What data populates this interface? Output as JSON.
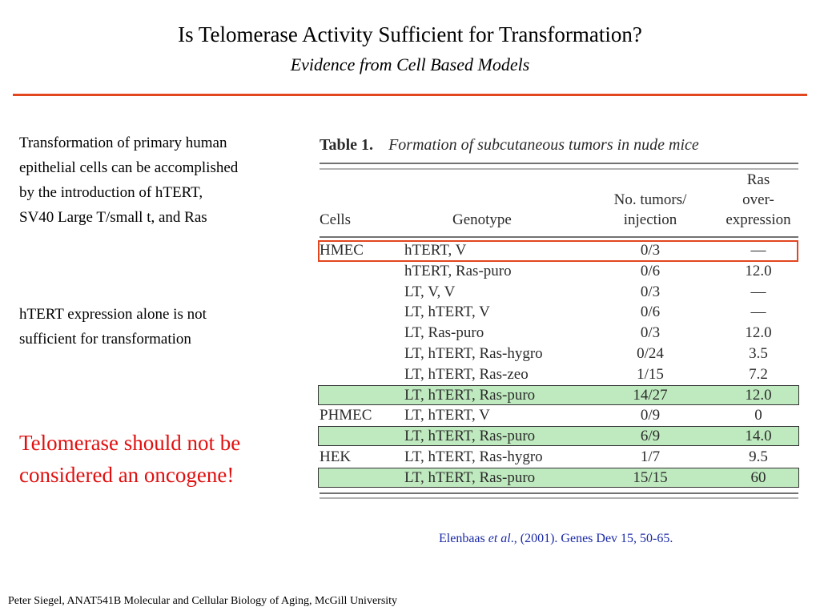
{
  "slide": {
    "title": "Is Telomerase Activity Sufficient for Transformation?",
    "subtitle": "Evidence from Cell Based Models",
    "point1_lines": [
      "Transformation of primary human",
      "epithelial cells can be accomplished",
      "by the introduction of hTERT,",
      "SV40 Large T/small t, and Ras"
    ],
    "point2_lines": [
      "hTERT expression alone is not",
      "sufficient for transformation"
    ],
    "callout_lines": [
      "Telomerase should not be",
      "considered an oncogene!"
    ],
    "citation": {
      "authors": "Elenbaas ",
      "etal": "et al",
      "rest": "., (2001). Genes Dev 15, 50-65."
    },
    "footer": "Peter Siegel, ANAT541B Molecular and Cellular Biology of Aging, McGill University",
    "accent_color": "#e2461f",
    "callout_color": "#e01010",
    "citation_color": "#1a2aa6"
  },
  "table": {
    "number": "Table 1.",
    "caption": "Formation of subcutaneous tumors in nude mice",
    "headers": {
      "cells": "Cells",
      "genotype": "Genotype",
      "tumors_lines": [
        "No. tumors/",
        "injection"
      ],
      "ras_lines": [
        "Ras",
        "over-",
        "expression"
      ]
    },
    "rows": [
      {
        "cells": "HMEC",
        "genotype": "hTERT, V",
        "tumors": "0/3",
        "ras": "—",
        "highlight": "red"
      },
      {
        "cells": "",
        "genotype": "hTERT, Ras-puro",
        "tumors": "0/6",
        "ras": "12.0",
        "highlight": ""
      },
      {
        "cells": "",
        "genotype": "LT, V, V",
        "tumors": "0/3",
        "ras": "—",
        "highlight": ""
      },
      {
        "cells": "",
        "genotype": "LT, hTERT, V",
        "tumors": "0/6",
        "ras": "—",
        "highlight": ""
      },
      {
        "cells": "",
        "genotype": "LT, Ras-puro",
        "tumors": "0/3",
        "ras": "12.0",
        "highlight": ""
      },
      {
        "cells": "",
        "genotype": "LT, hTERT, Ras-hygro",
        "tumors": "0/24",
        "ras": "3.5",
        "highlight": ""
      },
      {
        "cells": "",
        "genotype": "LT, hTERT, Ras-zeo",
        "tumors": "1/15",
        "ras": "7.2",
        "highlight": ""
      },
      {
        "cells": "",
        "genotype": "LT, hTERT, Ras-puro",
        "tumors": "14/27",
        "ras": "12.0",
        "highlight": "green"
      },
      {
        "cells": "PHMEC",
        "genotype": "LT, hTERT, V",
        "tumors": "0/9",
        "ras": "0",
        "highlight": ""
      },
      {
        "cells": "",
        "genotype": "LT, hTERT, Ras-puro",
        "tumors": "6/9",
        "ras": "14.0",
        "highlight": "green"
      },
      {
        "cells": "HEK",
        "genotype": "LT, hTERT, Ras-hygro",
        "tumors": "1/7",
        "ras": "9.5",
        "highlight": ""
      },
      {
        "cells": "",
        "genotype": "LT, hTERT, Ras-puro",
        "tumors": "15/15",
        "ras": "60",
        "highlight": "green"
      }
    ]
  }
}
